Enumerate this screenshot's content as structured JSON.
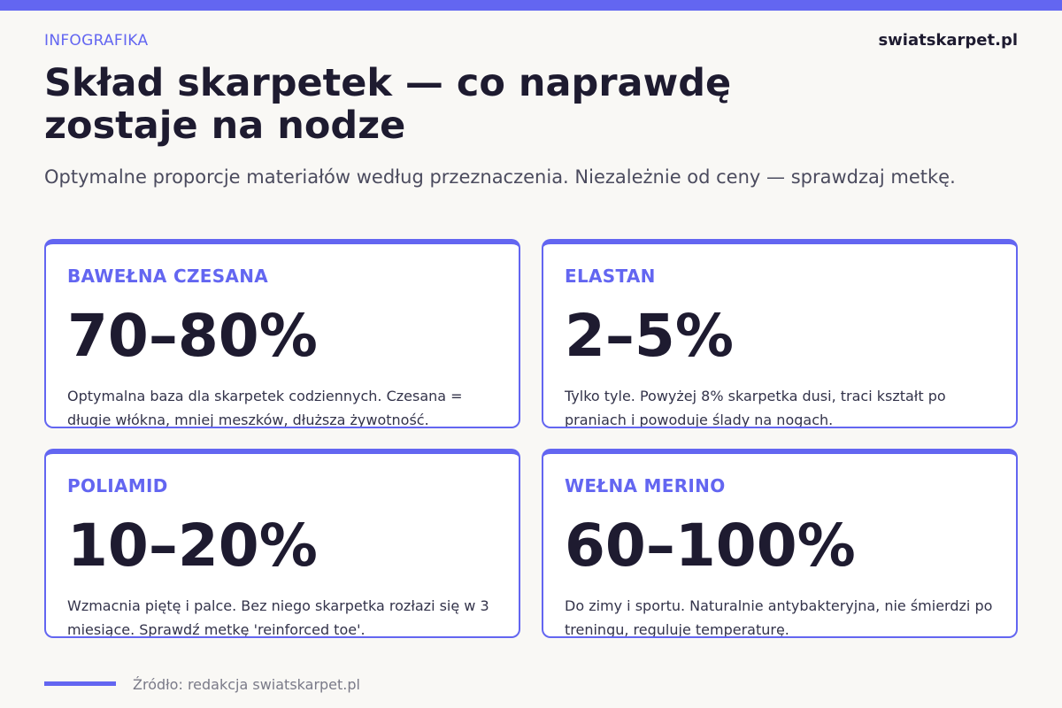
{
  "header": {
    "eyebrow": "INFOGRAFIKA",
    "brand": "swiatskarpet.pl",
    "title": "Skład skarpetek — co naprawdę zostaje na nodze",
    "subtitle": "Optymalne proporcje materiałów według przeznaczenia. Niezależnie od ceny — sprawdzaj metkę."
  },
  "cards": [
    {
      "label": "BAWEŁNA CZESANA",
      "value": "70–80%",
      "description": "Optymalna baza dla skarpetek codziennych. Czesana = długie włókna, mniej meszków, dłuższa żywotność."
    },
    {
      "label": "ELASTAN",
      "value": "2–5%",
      "description": "Tylko tyle. Powyżej 8% skarpetka dusi, traci kształt po praniach i powoduje ślady na nogach."
    },
    {
      "label": "POLIAMID",
      "value": "10–20%",
      "description": "Wzmacnia piętę i palce. Bez niego skarpetka rozłazi się w 3 miesiące. Sprawdź metkę 'reinforced toe'."
    },
    {
      "label": "WEŁNA MERINO",
      "value": "60–100%",
      "description": "Do zimy i sportu. Naturalnie antybakteryjna, nie śmierdzi po treningu, reguluje temperaturę."
    }
  ],
  "footer": {
    "source": "Źródło: redakcja swiatskarpet.pl"
  },
  "colors": {
    "accent": "#6366f1",
    "text_dark": "#1e1b30",
    "background": "#f9f8f5"
  }
}
